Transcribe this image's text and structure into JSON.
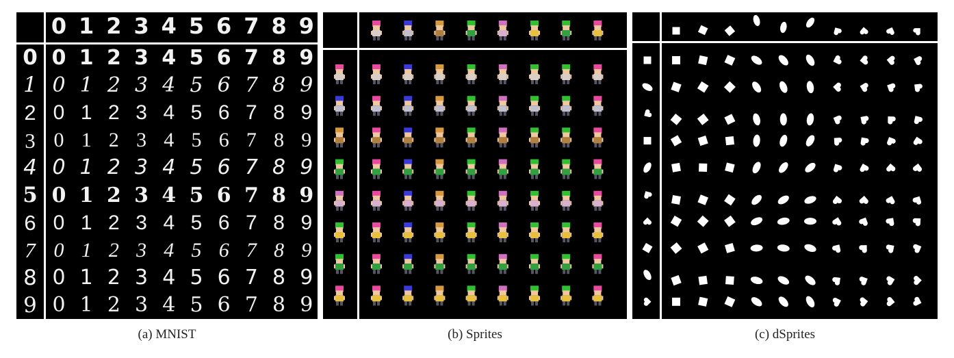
{
  "figure": {
    "panels": [
      {
        "id": "mnist",
        "caption": "(a)  MNIST",
        "style_labels": [
          "0",
          "1",
          "2",
          "3",
          "4",
          "5",
          "6",
          "7",
          "8",
          "9"
        ],
        "content_labels": [
          "0",
          "1",
          "2",
          "3",
          "4",
          "5",
          "6",
          "7",
          "8",
          "9"
        ]
      },
      {
        "id": "sprites",
        "caption": "(b)  Sprites"
      },
      {
        "id": "dsprites",
        "caption": "(c)  dSprites"
      }
    ]
  },
  "colors": {
    "background": "#000000",
    "divider": "#ffffff",
    "sprite_hair": [
      "#e84aa0",
      "#3a3ad8",
      "#d89a40",
      "#30c030",
      "#d070c0",
      "#30c030",
      "#30c030",
      "#e84aa0"
    ],
    "sprite_body": [
      "#d8d0c8",
      "#c0c0d0",
      "#b08040",
      "#30a040",
      "#d8b0d0",
      "#e8c040",
      "#30a040",
      "#e8c040"
    ]
  },
  "icons": {
    "sprite": "pixel-character-icon",
    "dsprite_shapes": [
      "square",
      "square",
      "square",
      "ellipse",
      "ellipse",
      "ellipse",
      "heart",
      "heart",
      "heart",
      "heart"
    ]
  }
}
